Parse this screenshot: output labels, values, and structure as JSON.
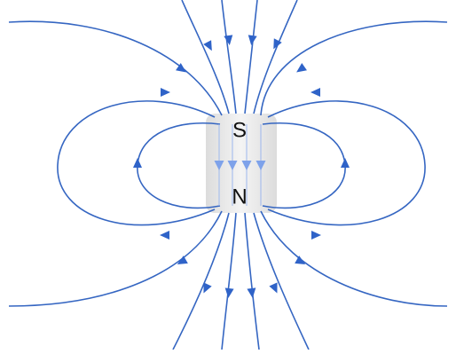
{
  "magnet": {
    "south": "S",
    "north": "N"
  }
}
